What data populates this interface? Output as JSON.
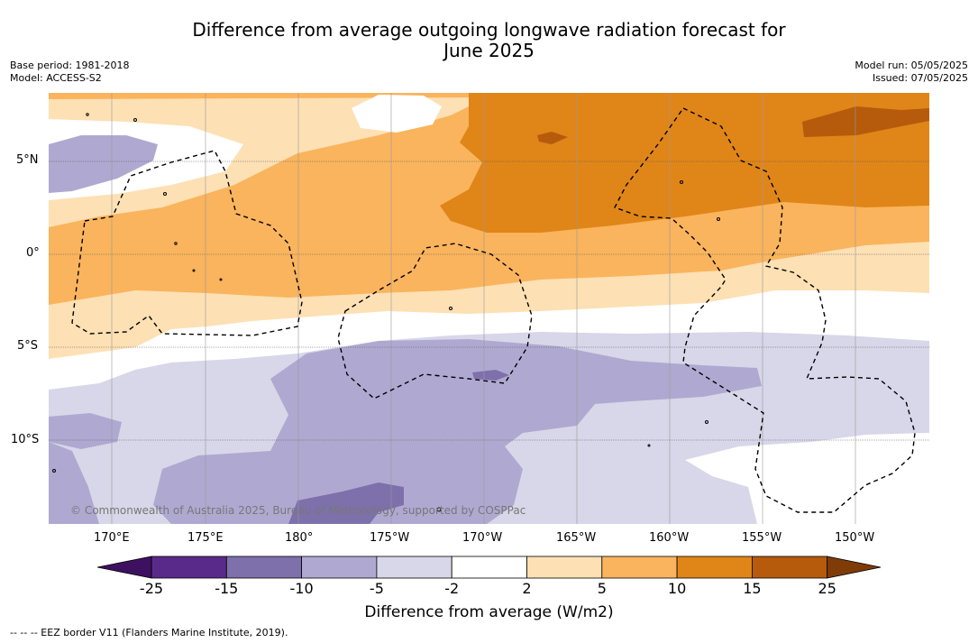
{
  "title": {
    "line1": "Difference from average outgoing longwave radiation forecast for",
    "line2": "June 2025"
  },
  "meta_left": {
    "base_period": "Base period: 1981-2018",
    "model": "Model: ACCESS-S2"
  },
  "meta_right": {
    "model_run": "Model run: 05/05/2025",
    "issued": "Issued: 07/05/2025"
  },
  "map": {
    "lat_labels": [
      "5°N",
      "0°",
      "5°S",
      "10°S"
    ],
    "lon_labels": [
      "170°E",
      "175°E",
      "180°",
      "175°W",
      "170°W",
      "165°W",
      "160°W",
      "155°W",
      "150°W"
    ],
    "copyright": "© Commonwealth of Australia 2025, Bureau of Meteorology, supported by COSPPac",
    "boundary": "EEZ border"
  },
  "colorbar": {
    "labels": [
      "-25",
      "-15",
      "-10",
      "-5",
      "-2",
      "2",
      "5",
      "10",
      "15",
      "25"
    ],
    "colors": [
      "#5a2a8a",
      "#7e70ab",
      "#afa9d1",
      "#d7d7e9",
      "#ffffff",
      "#fde0b4",
      "#f9b45d",
      "#e08518",
      "#b55b0b"
    ],
    "under_color": "#3e1160",
    "over_color": "#7f3b08",
    "xlabel": "Difference from average (W/m2)"
  },
  "footnote": "--  --  -- EEZ border V11 (Flanders Marine Institute, 2019)."
}
